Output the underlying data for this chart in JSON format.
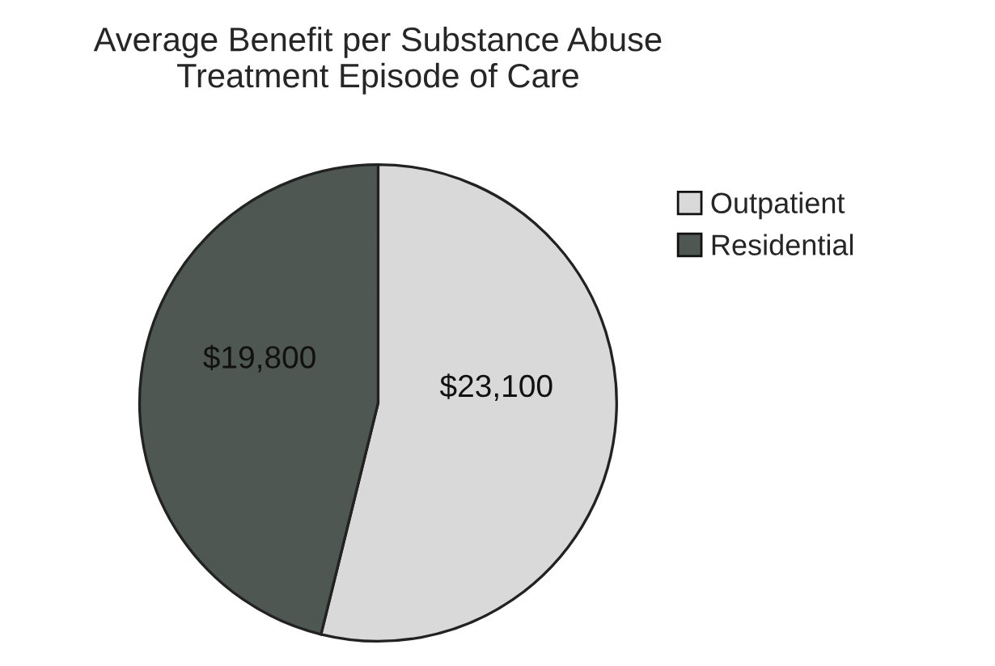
{
  "chart_data": {
    "type": "pie",
    "title": "Average Benefit per Substance Abuse\nTreatment Episode of Care",
    "categories": [
      "Outpatient",
      "Residential"
    ],
    "values": [
      23100,
      19800
    ],
    "value_labels": [
      "$23,100",
      "$19,800"
    ],
    "colors": [
      "#d9d9d9",
      "#4f5753"
    ],
    "legend": "right"
  }
}
